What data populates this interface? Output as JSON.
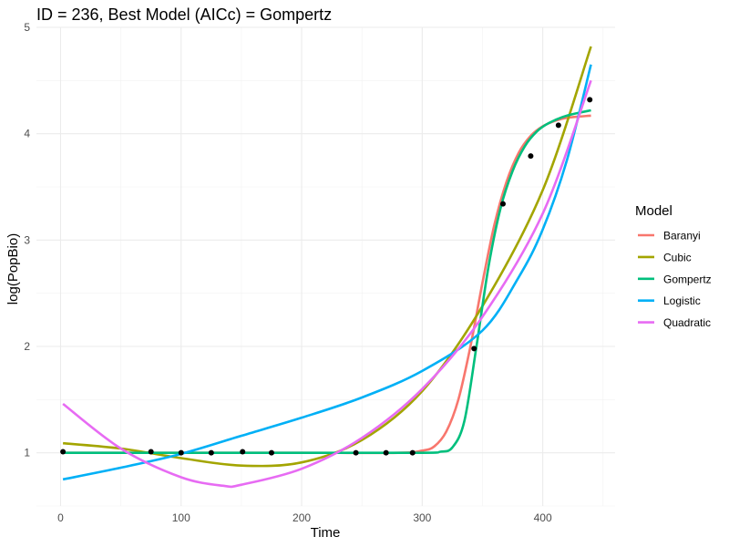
{
  "chart_data": {
    "type": "line",
    "title": "ID = 236, Best Model (AICc) = Gompertz",
    "xlabel": "Time",
    "ylabel": "log(PopBio)",
    "xlim": [
      -20,
      460
    ],
    "ylim": [
      0.5,
      5.0
    ],
    "x_ticks": [
      0,
      100,
      200,
      300,
      400
    ],
    "y_ticks": [
      1,
      2,
      3,
      4,
      5
    ],
    "grid": true,
    "legend": {
      "title": "Model",
      "position": "right",
      "entries": [
        "Baranyi",
        "Cubic",
        "Gompertz",
        "Logistic",
        "Quadratic"
      ]
    },
    "points": {
      "x": [
        2,
        75,
        100,
        125,
        151,
        175,
        245,
        270,
        292,
        343,
        367,
        390,
        413,
        439
      ],
      "y": [
        1.01,
        1.01,
        1.0,
        1.0,
        1.01,
        1.0,
        1.0,
        1.0,
        1.0,
        1.98,
        3.34,
        3.79,
        4.08,
        4.32
      ]
    },
    "series": [
      {
        "name": "Baranyi",
        "color": "#F8766D",
        "x": [
          2,
          100,
          200,
          280,
          300,
          310,
          320,
          330,
          340,
          350,
          360,
          370,
          380,
          390,
          400,
          410,
          420,
          440
        ],
        "y": [
          1.0,
          1.0,
          1.0,
          1.0,
          1.02,
          1.06,
          1.2,
          1.5,
          2.0,
          2.6,
          3.15,
          3.55,
          3.82,
          3.98,
          4.07,
          4.12,
          4.15,
          4.17
        ]
      },
      {
        "name": "Cubic",
        "color": "#A3A500",
        "x": [
          2,
          50,
          100,
          150,
          200,
          250,
          300,
          350,
          400,
          440
        ],
        "y": [
          1.09,
          1.04,
          0.95,
          0.88,
          0.91,
          1.12,
          1.58,
          2.38,
          3.47,
          4.82
        ]
      },
      {
        "name": "Gompertz",
        "color": "#00BF7D",
        "x": [
          2,
          100,
          200,
          300,
          315,
          325,
          335,
          345,
          355,
          365,
          375,
          385,
          395,
          405,
          420,
          440
        ],
        "y": [
          1.0,
          1.0,
          1.0,
          1.0,
          1.01,
          1.05,
          1.3,
          2.0,
          2.75,
          3.3,
          3.65,
          3.88,
          4.02,
          4.1,
          4.17,
          4.22
        ]
      },
      {
        "name": "Logistic",
        "color": "#00B0F6",
        "x": [
          2,
          50,
          100,
          150,
          200,
          250,
          300,
          350,
          380,
          400,
          420,
          440
        ],
        "y": [
          0.75,
          0.86,
          0.99,
          1.16,
          1.33,
          1.52,
          1.77,
          2.15,
          2.65,
          3.1,
          3.75,
          4.65
        ]
      },
      {
        "name": "Quadratic",
        "color": "#E76BF3",
        "x": [
          2,
          50,
          100,
          135,
          150,
          200,
          250,
          300,
          350,
          400,
          440
        ],
        "y": [
          1.46,
          1.04,
          0.77,
          0.69,
          0.7,
          0.85,
          1.14,
          1.6,
          2.28,
          3.25,
          4.5
        ]
      }
    ]
  }
}
